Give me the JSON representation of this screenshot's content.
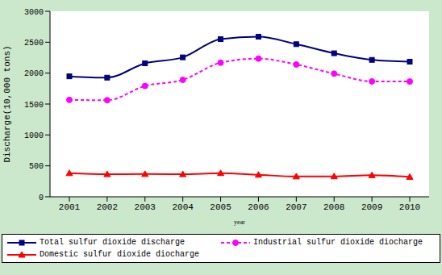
{
  "chart_data": {
    "type": "line",
    "x_label": "year",
    "y_label": "Discharge(10,000 tons)",
    "categories": [
      "2001",
      "2002",
      "2003",
      "2004",
      "2005",
      "2006",
      "2007",
      "2008",
      "2009",
      "2010"
    ],
    "ylim": [
      0,
      3000
    ],
    "yticks": [
      0,
      500,
      1000,
      1500,
      2000,
      2500,
      3000
    ],
    "grid": false,
    "legend": "bottom",
    "series": [
      {
        "name": "Total sulfur dioxide discharge",
        "color": "#000080",
        "marker": "square",
        "line_style": "solid",
        "values": [
          1948,
          1927,
          2159,
          2255,
          2549,
          2589,
          2468,
          2321,
          2214,
          2185
        ]
      },
      {
        "name": "Industrial sulfur dioxide diocharge",
        "color": "#ff00ff",
        "marker": "circle",
        "line_style": "dashed",
        "values": [
          1567,
          1562,
          1792,
          1891,
          2168,
          2235,
          2140,
          1991,
          1866,
          1864
        ]
      },
      {
        "name": "Domestic sulfur dioxide diocharge",
        "color": "#ff0000",
        "marker": "triangle",
        "line_style": "solid",
        "values": [
          381,
          365,
          367,
          364,
          382,
          355,
          328,
          330,
          348,
          321
        ]
      }
    ]
  }
}
